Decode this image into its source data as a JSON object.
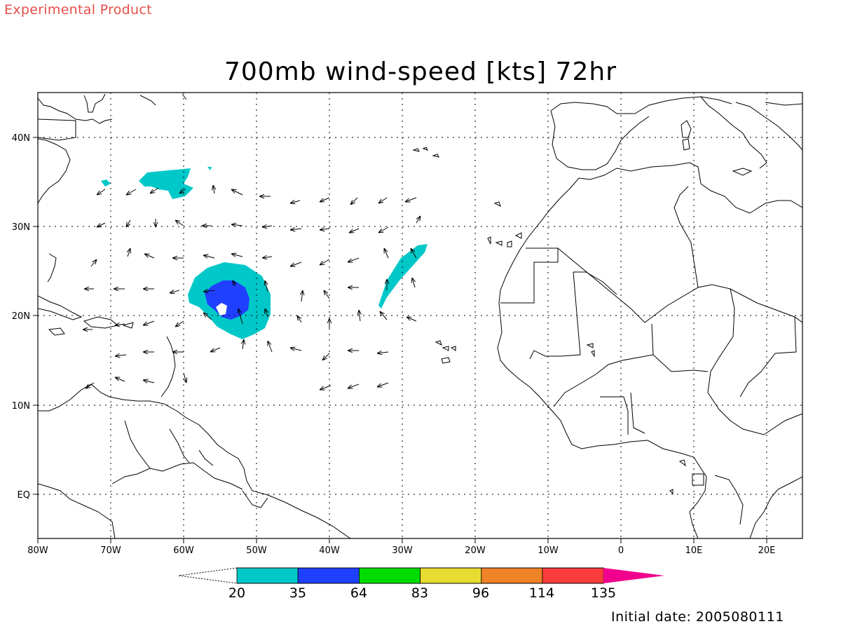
{
  "header": {
    "experimental": "Experimental Product",
    "title": "700mb wind-speed [kts] 72hr"
  },
  "map": {
    "lon_range": [
      -80,
      25
    ],
    "lat_range": [
      -5,
      45
    ],
    "lon_ticks": [
      "80W",
      "70W",
      "60W",
      "50W",
      "40W",
      "30W",
      "20W",
      "10W",
      "0",
      "10E",
      "20E"
    ],
    "lat_ticks": [
      "40N",
      "30N",
      "20N",
      "10N",
      "EQ"
    ],
    "gridlines": "dotted",
    "region": "North Atlantic and West Africa"
  },
  "colorbar": {
    "labels": [
      "20",
      "35",
      "64",
      "83",
      "96",
      "114",
      "135"
    ],
    "colors": [
      "#00c8c8",
      "#2040ff",
      "#00dc00",
      "#e6dc32",
      "#f08228",
      "#fa3c3c",
      "#f0008c"
    ]
  },
  "footer": {
    "initial_date": "Initial date: 2005080111"
  }
}
